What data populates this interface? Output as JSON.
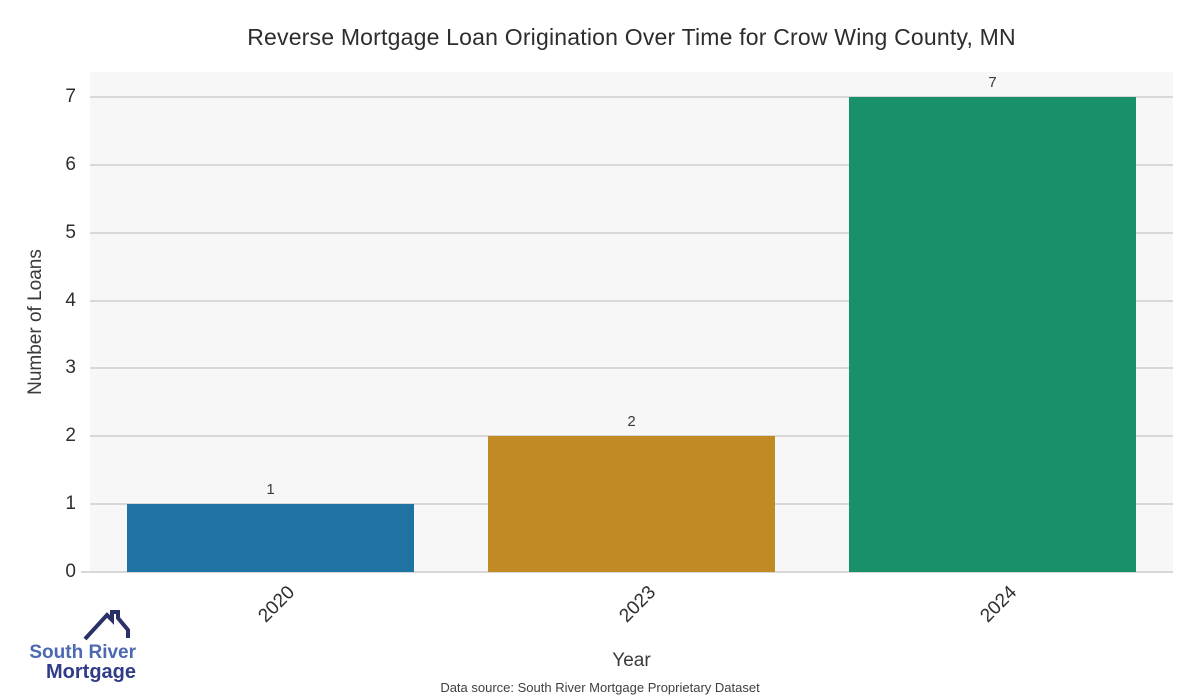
{
  "chart_data": {
    "type": "bar",
    "title": "Reverse Mortgage Loan Origination Over Time for Crow Wing County, MN",
    "categories": [
      "2020",
      "2023",
      "2024"
    ],
    "values": [
      1,
      2,
      7
    ],
    "colors": [
      "#1f73a3",
      "#c28a22",
      "#18916b"
    ],
    "xlabel": "Year",
    "ylabel": "Number of Loans",
    "ylim": [
      0,
      7.37
    ],
    "yticks": [
      0,
      1,
      2,
      3,
      4,
      5,
      6,
      7
    ],
    "bar_width_frac": 0.795,
    "grid": true,
    "legend_position": "none",
    "plot_background": "#f7f7f7",
    "gridline_color": "#d8d8d8",
    "value_labels_shown": true
  },
  "footer": {
    "data_source": "Data source: South River Mortgage Proprietary Dataset"
  },
  "logo": {
    "line1": "South River",
    "line2": "Mortgage",
    "icon": "house-roof-icon",
    "icon_color": "#2a3168",
    "text_color_primary": "#4c69b1",
    "text_color_secondary": "#303c88"
  }
}
